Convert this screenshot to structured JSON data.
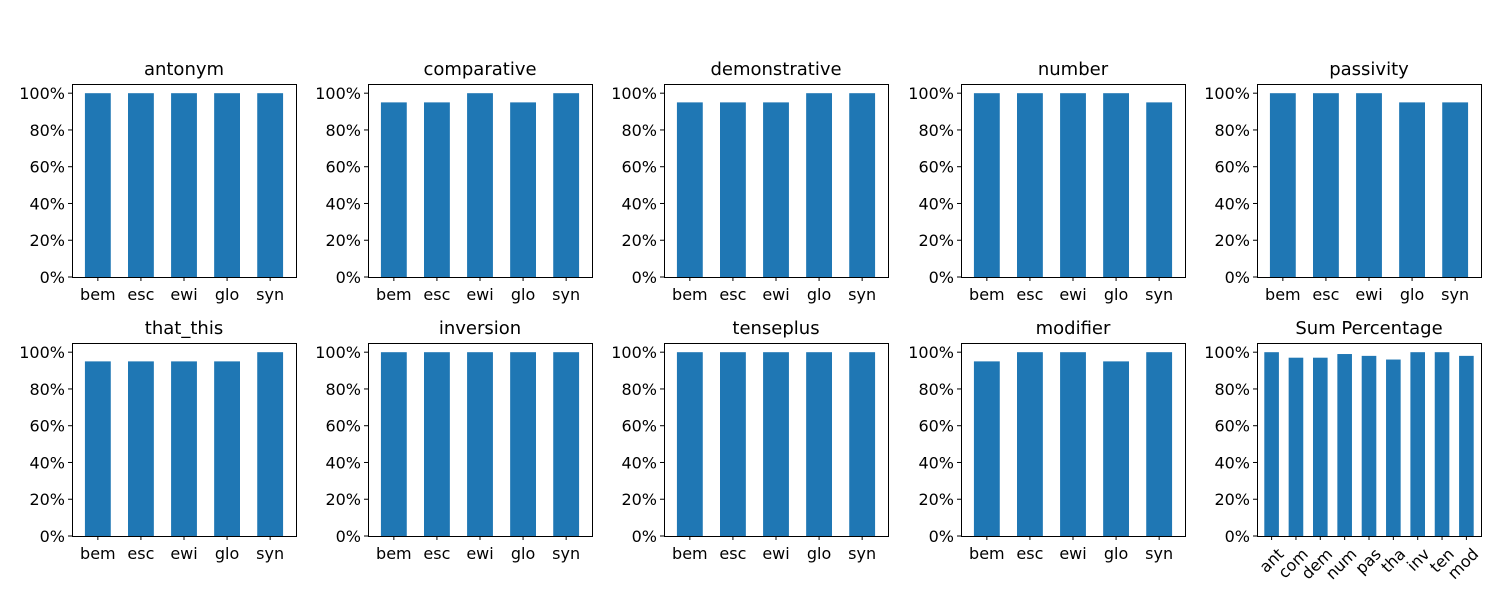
{
  "figure": {
    "bar_color": "#1f77b4",
    "background": "#ffffff"
  },
  "chart_data": [
    {
      "type": "bar",
      "title": "antonym",
      "categories": [
        "bem",
        "esc",
        "ewi",
        "glo",
        "syn"
      ],
      "values": [
        100,
        100,
        100,
        100,
        100
      ],
      "ylim": [
        0,
        105
      ],
      "yticks": [
        0,
        20,
        40,
        60,
        80,
        100
      ],
      "ytick_labels": [
        "0%",
        "20%",
        "40%",
        "60%",
        "80%",
        "100%"
      ],
      "xlabel": "",
      "ylabel": "",
      "grid": false,
      "legend": "none"
    },
    {
      "type": "bar",
      "title": "comparative",
      "categories": [
        "bem",
        "esc",
        "ewi",
        "glo",
        "syn"
      ],
      "values": [
        95,
        95,
        100,
        95,
        100
      ],
      "ylim": [
        0,
        105
      ],
      "yticks": [
        0,
        20,
        40,
        60,
        80,
        100
      ],
      "ytick_labels": [
        "0%",
        "20%",
        "40%",
        "60%",
        "80%",
        "100%"
      ],
      "xlabel": "",
      "ylabel": "",
      "grid": false,
      "legend": "none"
    },
    {
      "type": "bar",
      "title": "demonstrative",
      "categories": [
        "bem",
        "esc",
        "ewi",
        "glo",
        "syn"
      ],
      "values": [
        95,
        95,
        95,
        100,
        100
      ],
      "ylim": [
        0,
        105
      ],
      "yticks": [
        0,
        20,
        40,
        60,
        80,
        100
      ],
      "ytick_labels": [
        "0%",
        "20%",
        "40%",
        "60%",
        "80%",
        "100%"
      ],
      "xlabel": "",
      "ylabel": "",
      "grid": false,
      "legend": "none"
    },
    {
      "type": "bar",
      "title": "number",
      "categories": [
        "bem",
        "esc",
        "ewi",
        "glo",
        "syn"
      ],
      "values": [
        100,
        100,
        100,
        100,
        95
      ],
      "ylim": [
        0,
        105
      ],
      "yticks": [
        0,
        20,
        40,
        60,
        80,
        100
      ],
      "ytick_labels": [
        "0%",
        "20%",
        "40%",
        "60%",
        "80%",
        "100%"
      ],
      "xlabel": "",
      "ylabel": "",
      "grid": false,
      "legend": "none"
    },
    {
      "type": "bar",
      "title": "passivity",
      "categories": [
        "bem",
        "esc",
        "ewi",
        "glo",
        "syn"
      ],
      "values": [
        100,
        100,
        100,
        95,
        95
      ],
      "ylim": [
        0,
        105
      ],
      "yticks": [
        0,
        20,
        40,
        60,
        80,
        100
      ],
      "ytick_labels": [
        "0%",
        "20%",
        "40%",
        "60%",
        "80%",
        "100%"
      ],
      "xlabel": "",
      "ylabel": "",
      "grid": false,
      "legend": "none"
    },
    {
      "type": "bar",
      "title": "that_this",
      "categories": [
        "bem",
        "esc",
        "ewi",
        "glo",
        "syn"
      ],
      "values": [
        95,
        95,
        95,
        95,
        100
      ],
      "ylim": [
        0,
        105
      ],
      "yticks": [
        0,
        20,
        40,
        60,
        80,
        100
      ],
      "ytick_labels": [
        "0%",
        "20%",
        "40%",
        "60%",
        "80%",
        "100%"
      ],
      "xlabel": "",
      "ylabel": "",
      "grid": false,
      "legend": "none"
    },
    {
      "type": "bar",
      "title": "inversion",
      "categories": [
        "bem",
        "esc",
        "ewi",
        "glo",
        "syn"
      ],
      "values": [
        100,
        100,
        100,
        100,
        100
      ],
      "ylim": [
        0,
        105
      ],
      "yticks": [
        0,
        20,
        40,
        60,
        80,
        100
      ],
      "ytick_labels": [
        "0%",
        "20%",
        "40%",
        "60%",
        "80%",
        "100%"
      ],
      "xlabel": "",
      "ylabel": "",
      "grid": false,
      "legend": "none"
    },
    {
      "type": "bar",
      "title": "tenseplus",
      "categories": [
        "bem",
        "esc",
        "ewi",
        "glo",
        "syn"
      ],
      "values": [
        100,
        100,
        100,
        100,
        100
      ],
      "ylim": [
        0,
        105
      ],
      "yticks": [
        0,
        20,
        40,
        60,
        80,
        100
      ],
      "ytick_labels": [
        "0%",
        "20%",
        "40%",
        "60%",
        "80%",
        "100%"
      ],
      "xlabel": "",
      "ylabel": "",
      "grid": false,
      "legend": "none"
    },
    {
      "type": "bar",
      "title": "modifier",
      "categories": [
        "bem",
        "esc",
        "ewi",
        "glo",
        "syn"
      ],
      "values": [
        95,
        100,
        100,
        95,
        100
      ],
      "ylim": [
        0,
        105
      ],
      "yticks": [
        0,
        20,
        40,
        60,
        80,
        100
      ],
      "ytick_labels": [
        "0%",
        "20%",
        "40%",
        "60%",
        "80%",
        "100%"
      ],
      "xlabel": "",
      "ylabel": "",
      "grid": false,
      "legend": "none"
    },
    {
      "type": "bar",
      "title": "Sum Percentage",
      "categories": [
        "ant",
        "com",
        "dem",
        "num",
        "pas",
        "tha",
        "inv",
        "ten",
        "mod"
      ],
      "values": [
        100,
        97,
        97,
        99,
        98,
        96,
        100,
        100,
        98
      ],
      "ylim": [
        0,
        105
      ],
      "yticks": [
        0,
        20,
        40,
        60,
        80,
        100
      ],
      "ytick_labels": [
        "0%",
        "20%",
        "40%",
        "60%",
        "80%",
        "100%"
      ],
      "xtick_rotation": 45,
      "xlabel": "",
      "ylabel": "",
      "grid": false,
      "legend": "none"
    }
  ]
}
